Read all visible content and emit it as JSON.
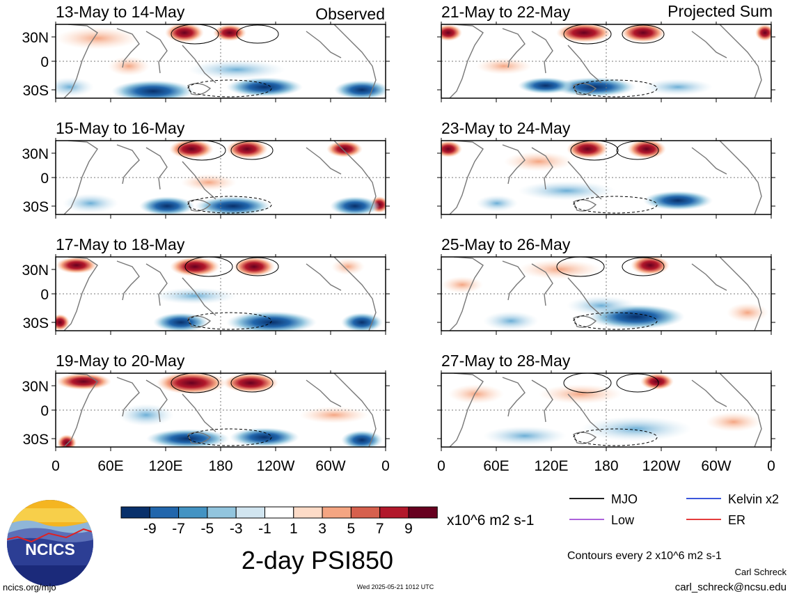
{
  "header": {
    "left_column_tag": "Observed",
    "right_column_tag": "Projected Sum"
  },
  "panels": [
    {
      "id": "p1",
      "title": "13-May to 14-May",
      "column": "observed"
    },
    {
      "id": "p2",
      "title": "15-May to 16-May",
      "column": "observed"
    },
    {
      "id": "p3",
      "title": "17-May to 18-May",
      "column": "observed"
    },
    {
      "id": "p4",
      "title": "19-May to 20-May",
      "column": "observed"
    },
    {
      "id": "p5",
      "title": "21-May to 22-May",
      "column": "projected"
    },
    {
      "id": "p6",
      "title": "23-May to 24-May",
      "column": "projected"
    },
    {
      "id": "p7",
      "title": "25-May to 26-May",
      "column": "projected"
    },
    {
      "id": "p8",
      "title": "27-May to 28-May",
      "column": "projected"
    }
  ],
  "lat_labels": [
    "30N",
    "0",
    "30S"
  ],
  "lon_labels": [
    "0",
    "60E",
    "120E",
    "180",
    "120W",
    "60W",
    "0"
  ],
  "colorbar": {
    "labels": [
      "-9",
      "-7",
      "-5",
      "-3",
      "-1",
      "1",
      "3",
      "5",
      "7",
      "9"
    ],
    "colors": [
      "#08306b",
      "#2166ac",
      "#4393c3",
      "#92c5de",
      "#d1e5f0",
      "#ffffff",
      "#fddbc7",
      "#f4a582",
      "#d6604d",
      "#b2182b",
      "#67001f"
    ],
    "units": "x10^6 m2 s-1"
  },
  "legend": {
    "items": [
      {
        "label": "MJO",
        "color": "#000000"
      },
      {
        "label": "Kelvin x2",
        "color": "#1f3fd6"
      },
      {
        "label": "Low",
        "color": "#a04cd6"
      },
      {
        "label": "ER",
        "color": "#e02020"
      }
    ],
    "contour_note": "Contours every 2 x10^6 m2 s-1"
  },
  "main_title": "2-day PSI850",
  "logo_text": "NCICS",
  "footer": {
    "url": "ncics.org/mjo",
    "timestamp": "Wed 2025-05-21 1012 UTC",
    "author": "Carl Schreck",
    "email": "carl_schreck@ncsu.edu"
  }
}
